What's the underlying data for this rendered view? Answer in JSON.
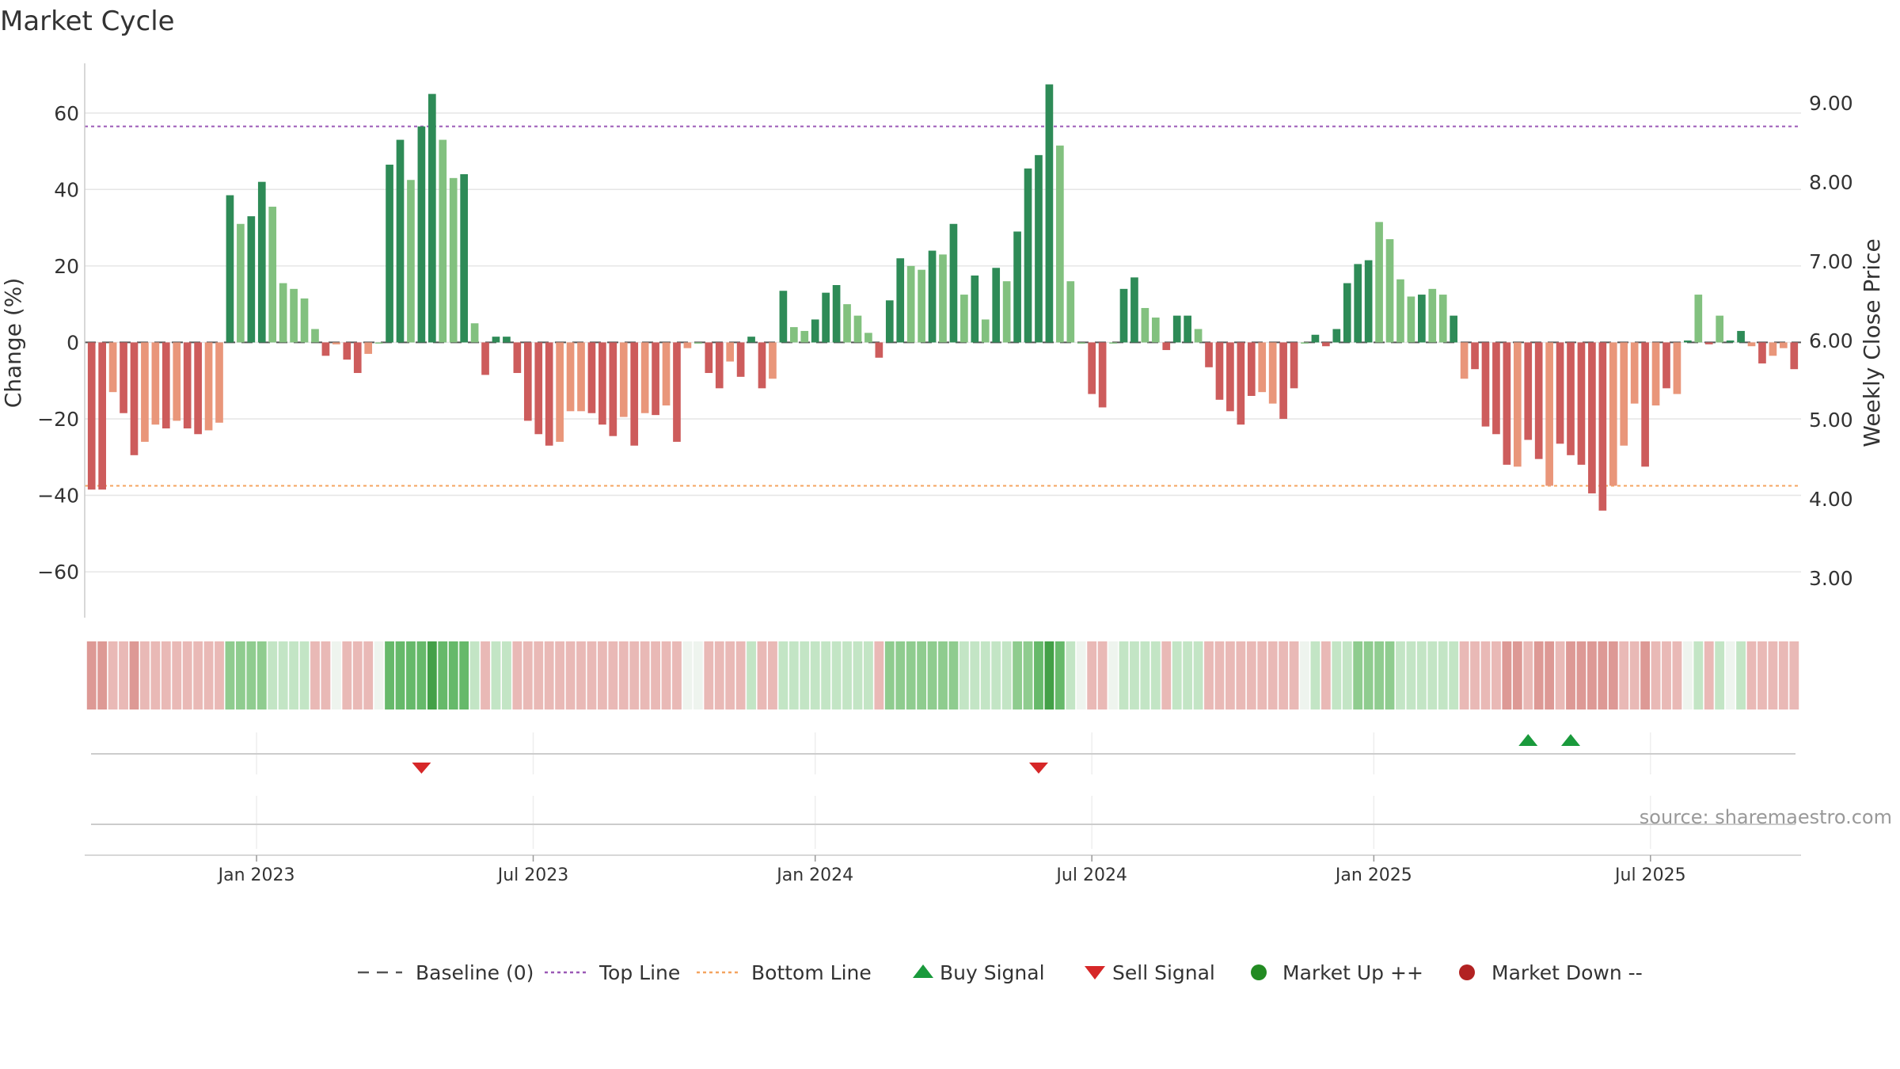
{
  "title": "Market Cycle",
  "source": "source: sharemaestro.com",
  "colors": {
    "up_strong": "#2e8b57",
    "up_light": "#82c17f",
    "down_strong": "#cd5c5c",
    "down_light": "#e9967a",
    "top_line": "#9b59b6",
    "bottom_line": "#f4a460",
    "buy": "#1a9a3c",
    "sell": "#d62728",
    "market_up": "#228b22",
    "market_down": "#b22222",
    "baseline": "#555555"
  },
  "chart_data": {
    "type": "bar",
    "title": "Market Cycle",
    "ylabel": "Change (%)",
    "y2label": "Weekly Close Price",
    "ylim": [
      -72,
      73
    ],
    "y_ticks": [
      60,
      40,
      20,
      0,
      -20,
      -40,
      -60
    ],
    "y_tick_labels": [
      "60",
      "40",
      "20",
      "0",
      "−20",
      "−40",
      "−60"
    ],
    "y2lim": [
      2.5,
      9.5
    ],
    "y2_ticks": [
      9.0,
      8.0,
      7.0,
      6.0,
      5.0,
      4.0,
      3.0
    ],
    "y2_tick_labels": [
      "9.00",
      "8.00",
      "7.00",
      "6.00",
      "5.00",
      "4.00",
      "3.00"
    ],
    "top_line": 56.5,
    "bottom_line": -37.5,
    "x_start_week_index": 0,
    "x_tick_labels": [
      {
        "label": "Jan 2023",
        "week": 15.5
      },
      {
        "label": "Jul 2023",
        "week": 41.5
      },
      {
        "label": "Jan 2024",
        "week": 68
      },
      {
        "label": "Jul 2024",
        "week": 94
      },
      {
        "label": "Jan 2025",
        "week": 120.5
      },
      {
        "label": "Jul 2025",
        "week": 146.5
      }
    ],
    "values": [
      -38.5,
      -38.5,
      -13,
      -18.5,
      -29.5,
      -26,
      -21.5,
      -22.5,
      -20.5,
      -22.5,
      -24,
      -23,
      -21,
      38.5,
      31,
      33,
      42,
      35.5,
      15.5,
      14,
      11.5,
      3.5,
      -3.5,
      -0.5,
      -4.5,
      -8,
      -3,
      0,
      46.5,
      53,
      42.5,
      56.5,
      65,
      53,
      43,
      44,
      5,
      -8.5,
      1.5,
      1.5,
      -8,
      -20.5,
      -24,
      -27,
      -26,
      -18,
      -18,
      -18.5,
      -21.5,
      -24.5,
      -19.5,
      -27,
      -18.5,
      -19,
      -16.5,
      -26,
      -1.5,
      0,
      -8,
      -12,
      -5,
      -9,
      1.5,
      -12,
      -9.5,
      13.5,
      4,
      3,
      6,
      13,
      15,
      10,
      7,
      2.5,
      -4,
      11,
      22,
      20,
      19,
      24,
      23,
      31,
      12.5,
      17.5,
      6,
      19.5,
      16,
      29,
      45.5,
      49,
      67.5,
      51.5,
      16,
      0,
      -13.5,
      -17,
      0,
      14,
      17,
      9,
      6.5,
      -2,
      7,
      7,
      3.5,
      -6.5,
      -15,
      -18,
      -21.5,
      -14,
      -13,
      -16,
      -20,
      -12,
      0,
      2,
      -1,
      3.5,
      15.5,
      20.5,
      21.5,
      31.5,
      27,
      16.5,
      12,
      12.5,
      14,
      12.5,
      7,
      -9.5,
      -7,
      -22,
      -24,
      -32,
      -32.5,
      -25.5,
      -30.5,
      -37.5,
      -26.5,
      -29.5,
      -32,
      -39.5,
      -44,
      -37.5,
      -27,
      -16,
      -32.5,
      -16.5,
      -12,
      -13.5,
      0.5,
      12.5,
      -0.5,
      7,
      0.5,
      3,
      -1,
      -5.5,
      -3.5,
      -1.5,
      -7
    ],
    "strong": [
      1,
      1,
      0,
      1,
      1,
      0,
      0,
      1,
      0,
      1,
      1,
      0,
      0,
      1,
      0,
      1,
      1,
      0,
      0,
      0,
      0,
      0,
      1,
      0,
      1,
      1,
      0,
      0,
      1,
      1,
      0,
      1,
      1,
      0,
      0,
      1,
      0,
      1,
      1,
      1,
      1,
      1,
      1,
      1,
      0,
      0,
      0,
      1,
      1,
      1,
      0,
      1,
      0,
      1,
      0,
      1,
      0,
      0,
      1,
      1,
      0,
      1,
      1,
      1,
      0,
      1,
      0,
      0,
      1,
      1,
      1,
      0,
      0,
      0,
      1,
      1,
      1,
      0,
      0,
      1,
      0,
      1,
      0,
      1,
      0,
      1,
      0,
      1,
      1,
      1,
      1,
      0,
      0,
      0,
      1,
      1,
      0,
      1,
      1,
      0,
      0,
      1,
      1,
      1,
      0,
      1,
      1,
      1,
      1,
      1,
      0,
      0,
      1,
      1,
      0,
      1,
      1,
      1,
      1,
      1,
      1,
      0,
      0,
      0,
      0,
      1,
      0,
      0,
      1,
      0,
      1,
      1,
      1,
      1,
      0,
      1,
      1,
      0,
      1,
      1,
      1,
      1,
      1,
      0,
      0,
      0,
      1,
      0,
      1,
      0,
      1,
      0,
      1,
      0,
      1,
      1,
      0,
      1,
      0,
      0,
      1
    ],
    "heat_strip": [
      -2,
      -2,
      -1,
      -1,
      -2,
      -1,
      -1,
      -1,
      -1,
      -1,
      -1,
      -1,
      -1,
      2,
      2,
      2,
      2,
      1,
      1,
      1,
      1,
      -1,
      -1,
      0,
      -1,
      -1,
      -1,
      0,
      3,
      3,
      3,
      3,
      4,
      3,
      3,
      3,
      1,
      -1,
      1,
      1,
      -1,
      -1,
      -1,
      -1,
      -1,
      -1,
      -1,
      -1,
      -1,
      -1,
      -1,
      -1,
      -1,
      -1,
      -1,
      -1,
      0,
      0,
      -1,
      -1,
      -1,
      -1,
      1,
      -1,
      -1,
      1,
      1,
      1,
      1,
      1,
      1,
      1,
      1,
      1,
      -1,
      2,
      2,
      2,
      2,
      2,
      2,
      2,
      1,
      1,
      1,
      1,
      1,
      2,
      2,
      3,
      4,
      3,
      1,
      0,
      -1,
      -1,
      0,
      1,
      1,
      1,
      1,
      -1,
      1,
      1,
      1,
      -1,
      -1,
      -1,
      -1,
      -1,
      -1,
      -1,
      -1,
      -1,
      0,
      1,
      -1,
      1,
      1,
      2,
      2,
      2,
      2,
      1,
      1,
      1,
      1,
      1,
      1,
      -1,
      -1,
      -1,
      -1,
      -2,
      -2,
      -1,
      -2,
      -2,
      -1,
      -2,
      -2,
      -2,
      -2,
      -2,
      -1,
      -1,
      -2,
      -1,
      -1,
      -1,
      0,
      1,
      -1,
      1,
      0,
      1,
      -1,
      -1,
      -1,
      -1,
      -1
    ],
    "sell_signals": [
      31,
      89
    ],
    "buy_signals": [
      135,
      139
    ],
    "legend": [
      {
        "key": "baseline",
        "label": "Baseline (0)"
      },
      {
        "key": "top",
        "label": "Top Line"
      },
      {
        "key": "bottom",
        "label": "Bottom Line"
      },
      {
        "key": "buy",
        "label": "Buy Signal"
      },
      {
        "key": "sell",
        "label": "Sell Signal"
      },
      {
        "key": "mup",
        "label": "Market Up ++"
      },
      {
        "key": "mdown",
        "label": "Market Down --"
      }
    ]
  }
}
